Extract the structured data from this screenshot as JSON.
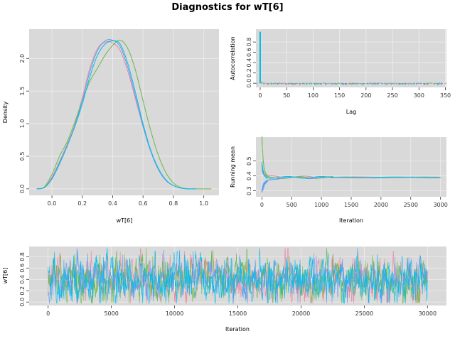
{
  "title": "Diagnostics for wT[6]",
  "colors": {
    "chain1": "#f0839f",
    "chain2": "#6bb84a",
    "chain3": "#5aa0f0",
    "chain4": "#00bfe8"
  },
  "chart_data": [
    {
      "id": "density",
      "type": "line",
      "xlabel": "wT[6]",
      "ylabel": "Density",
      "xlim": [
        -0.15,
        1.1
      ],
      "ylim": [
        -0.1,
        2.45
      ],
      "xticks": [
        "0.0",
        "0.2",
        "0.4",
        "0.6",
        "0.8",
        "1.0"
      ],
      "yticks": [
        "0.0",
        "0.5",
        "1.0",
        "1.5",
        "2.0"
      ],
      "grid": true,
      "series": [
        {
          "x": [
            -0.1,
            -0.05,
            0.0,
            0.05,
            0.1,
            0.15,
            0.2,
            0.25,
            0.3,
            0.35,
            0.4,
            0.45,
            0.5,
            0.55,
            0.6,
            0.65,
            0.7,
            0.75,
            0.8,
            0.85,
            0.9,
            0.95
          ],
          "values": [
            0.0,
            0.02,
            0.18,
            0.42,
            0.68,
            0.98,
            1.4,
            1.85,
            2.15,
            2.25,
            2.24,
            2.12,
            1.8,
            1.38,
            0.95,
            0.58,
            0.3,
            0.13,
            0.05,
            0.01,
            0.0,
            0.0
          ]
        },
        {
          "x": [
            -0.1,
            -0.05,
            0.0,
            0.05,
            0.1,
            0.15,
            0.2,
            0.25,
            0.3,
            0.35,
            0.4,
            0.45,
            0.5,
            0.55,
            0.6,
            0.65,
            0.7,
            0.75,
            0.8,
            0.85,
            0.9,
            0.95,
            1.05
          ],
          "values": [
            0.0,
            0.03,
            0.22,
            0.5,
            0.72,
            1.02,
            1.35,
            1.65,
            1.85,
            2.05,
            2.2,
            2.28,
            2.15,
            1.82,
            1.35,
            0.9,
            0.52,
            0.25,
            0.09,
            0.02,
            0.0,
            0.0,
            0.0
          ]
        },
        {
          "x": [
            -0.1,
            -0.05,
            0.0,
            0.05,
            0.1,
            0.15,
            0.2,
            0.25,
            0.3,
            0.35,
            0.4,
            0.45,
            0.5,
            0.55,
            0.6,
            0.65,
            0.7,
            0.75,
            0.8,
            0.85,
            0.9,
            0.95
          ],
          "values": [
            0.0,
            0.02,
            0.15,
            0.38,
            0.65,
            0.96,
            1.35,
            1.8,
            2.12,
            2.27,
            2.28,
            2.18,
            1.86,
            1.42,
            0.96,
            0.58,
            0.3,
            0.13,
            0.05,
            0.01,
            0.0,
            0.0
          ]
        },
        {
          "x": [
            -0.1,
            -0.05,
            0.0,
            0.05,
            0.1,
            0.15,
            0.2,
            0.25,
            0.3,
            0.35,
            0.4,
            0.45,
            0.5,
            0.55,
            0.6,
            0.65,
            0.7,
            0.75,
            0.8,
            0.85,
            0.9,
            0.95
          ],
          "values": [
            0.0,
            0.02,
            0.16,
            0.4,
            0.66,
            0.95,
            1.3,
            1.72,
            2.05,
            2.22,
            2.27,
            2.22,
            1.92,
            1.48,
            1.0,
            0.6,
            0.32,
            0.14,
            0.05,
            0.01,
            0.0,
            0.0
          ]
        }
      ]
    },
    {
      "id": "autocorrelation",
      "type": "bar",
      "xlabel": "Lag",
      "ylabel": "Autocorrelation",
      "xlim": [
        -8,
        352
      ],
      "ylim": [
        -0.08,
        1.05
      ],
      "xticks": [
        "0",
        "50",
        "100",
        "150",
        "200",
        "250",
        "300",
        "350"
      ],
      "yticks": [
        "0.0",
        "0.2",
        "0.4",
        "0.6",
        "0.8"
      ],
      "grid": true
    },
    {
      "id": "running_mean",
      "type": "line",
      "xlabel": "Iteration",
      "ylabel": "Running mean",
      "xlim": [
        -100,
        3100
      ],
      "ylim": [
        0.26,
        0.66
      ],
      "xticks": [
        "0",
        "500",
        "1000",
        "1500",
        "2000",
        "2500",
        "3000"
      ],
      "yticks": [
        "0.3",
        "0.4",
        "0.5"
      ],
      "grid": true,
      "final_value": 0.39
    },
    {
      "id": "trace",
      "type": "line",
      "xlabel": "Iteration",
      "ylabel": "wT[6]",
      "xlim": [
        -1500,
        31500
      ],
      "ylim": [
        -0.06,
        0.98
      ],
      "xticks": [
        "0",
        "5000",
        "10000",
        "15000",
        "20000",
        "25000",
        "30000"
      ],
      "yticks": [
        "0.0",
        "0.2",
        "0.4",
        "0.6",
        "0.8"
      ],
      "grid": true,
      "n_iter": 30000,
      "mean": 0.39
    }
  ]
}
